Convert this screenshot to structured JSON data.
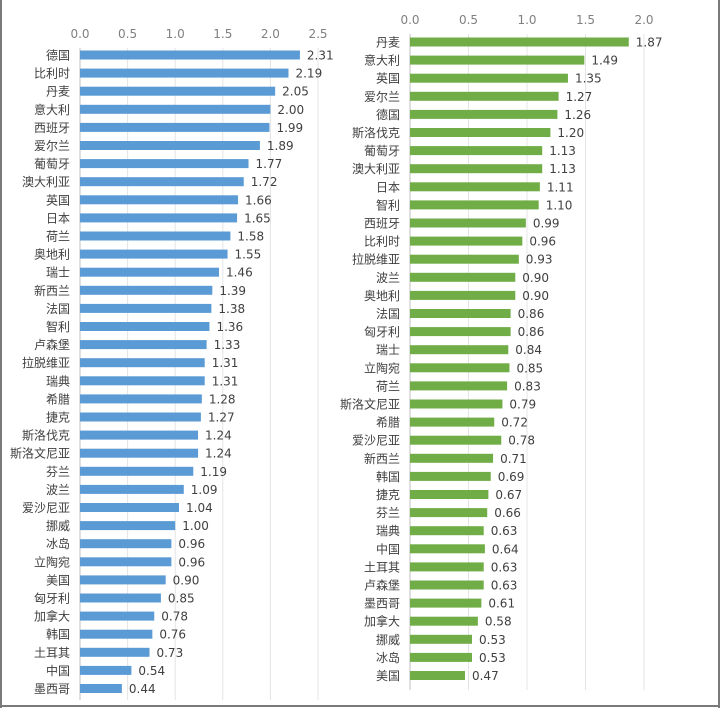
{
  "chart_data": [
    {
      "type": "bar",
      "orientation": "horizontal",
      "color": "#5b9bd5",
      "xlim": [
        0,
        2.5
      ],
      "xticks": [
        "0.0",
        "0.5",
        "1.0",
        "1.5",
        "2.0",
        "2.5"
      ],
      "grid": "vertical",
      "categories": [
        "德国",
        "比利时",
        "丹麦",
        "意大利",
        "西班牙",
        "爱尔兰",
        "葡萄牙",
        "澳大利亚",
        "英国",
        "日本",
        "荷兰",
        "奥地利",
        "瑞士",
        "新西兰",
        "法国",
        "智利",
        "卢森堡",
        "拉脱维亚",
        "瑞典",
        "希腊",
        "捷克",
        "斯洛伐克",
        "斯洛文尼亚",
        "芬兰",
        "波兰",
        "爱沙尼亚",
        "挪威",
        "冰岛",
        "立陶宛",
        "美国",
        "匈牙利",
        "加拿大",
        "韩国",
        "土耳其",
        "中国",
        "墨西哥"
      ],
      "values": [
        2.31,
        2.19,
        2.05,
        2.0,
        1.99,
        1.89,
        1.77,
        1.72,
        1.66,
        1.65,
        1.58,
        1.55,
        1.46,
        1.39,
        1.38,
        1.36,
        1.33,
        1.31,
        1.31,
        1.28,
        1.27,
        1.24,
        1.24,
        1.19,
        1.09,
        1.04,
        1.0,
        0.96,
        0.96,
        0.9,
        0.85,
        0.78,
        0.76,
        0.73,
        0.54,
        0.44
      ],
      "labels": [
        "2.31",
        "2.19",
        "2.05",
        "2.00",
        "1.99",
        "1.89",
        "1.77",
        "1.72",
        "1.66",
        "1.65",
        "1.58",
        "1.55",
        "1.46",
        "1.39",
        "1.38",
        "1.36",
        "1.33",
        "1.31",
        "1.31",
        "1.28",
        "1.27",
        "1.24",
        "1.24",
        "1.19",
        "1.09",
        "1.04",
        "1.00",
        "0.96",
        "0.96",
        "0.90",
        "0.85",
        "0.78",
        "0.76",
        "0.73",
        "0.54",
        "0.44"
      ]
    },
    {
      "type": "bar",
      "orientation": "horizontal",
      "color": "#70ad47",
      "xlim": [
        0,
        2.0
      ],
      "xticks": [
        "0.0",
        "0.5",
        "1.0",
        "1.5",
        "2.0"
      ],
      "grid": "vertical",
      "categories": [
        "丹麦",
        "意大利",
        "英国",
        "爱尔兰",
        "德国",
        "斯洛伐克",
        "葡萄牙",
        "澳大利亚",
        "日本",
        "智利",
        "西班牙",
        "比利时",
        "拉脱维亚",
        "波兰",
        "奥地利",
        "法国",
        "匈牙利",
        "瑞士",
        "立陶宛",
        "荷兰",
        "斯洛文尼亚",
        "希腊",
        "爱沙尼亚",
        "新西兰",
        "韩国",
        "捷克",
        "芬兰",
        "瑞典",
        "中国",
        "土耳其",
        "卢森堡",
        "墨西哥",
        "加拿大",
        "挪威",
        "冰岛",
        "美国"
      ],
      "values": [
        1.87,
        1.49,
        1.35,
        1.27,
        1.26,
        1.2,
        1.13,
        1.13,
        1.11,
        1.1,
        0.99,
        0.96,
        0.93,
        0.9,
        0.9,
        0.86,
        0.86,
        0.84,
        0.85,
        0.83,
        0.79,
        0.72,
        0.78,
        0.71,
        0.69,
        0.67,
        0.66,
        0.63,
        0.64,
        0.63,
        0.63,
        0.61,
        0.58,
        0.53,
        0.53,
        0.47
      ],
      "labels": [
        "1.87",
        "1.49",
        "1.35",
        "1.27",
        "1.26",
        "1.20",
        "1.13",
        "1.13",
        "1.11",
        "1.10",
        "0.99",
        "0.96",
        "0.93",
        "0.90",
        "0.90",
        "0.86",
        "0.86",
        "0.84",
        "0.85",
        "0.83",
        "0.79",
        "0.72",
        "0.78",
        "0.71",
        "0.69",
        "0.67",
        "0.66",
        "0.63",
        "0.64",
        "0.63",
        "0.63",
        "0.61",
        "0.58",
        "0.53",
        "0.53",
        "0.47"
      ]
    }
  ]
}
